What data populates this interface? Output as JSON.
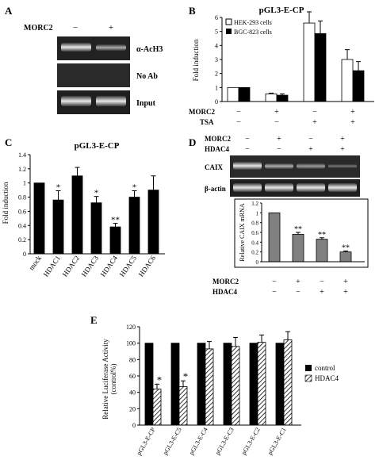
{
  "panelA": {
    "letter": "A",
    "label": "MORC2",
    "signs": [
      "−",
      "+"
    ],
    "rows": [
      "α-AcH3",
      "No Ab",
      "Input"
    ]
  },
  "panelB": {
    "letter": "B",
    "title": "pGL3-E-CP",
    "ylabel": "Fold induction",
    "yticks": [
      "0",
      "1",
      "2",
      "3",
      "4",
      "5",
      "6"
    ],
    "row_labels": [
      "MORC2",
      "TSA"
    ],
    "signs": [
      [
        "−",
        "+",
        "−",
        "+"
      ],
      [
        "−",
        "−",
        "+",
        "+"
      ]
    ],
    "legend": [
      "HEK-293 cells",
      "BGC-823 cells"
    ]
  },
  "panelC": {
    "letter": "C",
    "title": "pGL3-E-CP",
    "ylabel": "Fold induction",
    "yticks": [
      "0",
      "0.2",
      "0.4",
      "0.6",
      "0.8",
      "1",
      "1.2",
      "1.4"
    ],
    "categories": [
      "mock",
      "HDAC1",
      "HDAC2",
      "HDAC3",
      "HDAC4",
      "HDAC5",
      "HDAC6"
    ],
    "stars": [
      "",
      "*",
      "",
      "*",
      "**",
      "*",
      ""
    ]
  },
  "panelD": {
    "letter": "D",
    "top_labels": [
      "MORC2",
      "HDAC4"
    ],
    "top_signs": [
      [
        "−",
        "+",
        "−",
        "+"
      ],
      [
        "−",
        "−",
        "+",
        "+"
      ]
    ],
    "gel_rows": [
      "CAIX",
      "β-actin"
    ],
    "ylabel": "Relative CAIX mRNA",
    "yticks": [
      "0",
      "0.2",
      "0.4",
      "0.6",
      "0.8",
      "1",
      "1.2"
    ],
    "stars": [
      "",
      "**",
      "**",
      "**"
    ],
    "bottom_labels": [
      "MORC2",
      "HDAC4"
    ],
    "bottom_signs": [
      [
        "−",
        "+",
        "−",
        "+"
      ],
      [
        "−",
        "−",
        "+",
        "+"
      ]
    ]
  },
  "panelE": {
    "letter": "E",
    "ylabel": "Relative Luciferase Activity (control%)",
    "yticks": [
      "0",
      "20",
      "40",
      "60",
      "80",
      "100",
      "120"
    ],
    "categories": [
      "pGL3-E-CP",
      "pGL3-E-C5",
      "pGL3-E-C4",
      "pGL3-E-C3",
      "pGL3-E-C2",
      "pGL3-E-C1"
    ],
    "stars": [
      "*",
      "*",
      "",
      "",
      "",
      ""
    ],
    "legend": [
      "control",
      "HDAC4"
    ]
  },
  "chart_data": [
    {
      "panel": "B",
      "type": "bar",
      "title": "pGL3-E-CP",
      "ylabel": "Fold induction",
      "ylim": [
        0,
        6
      ],
      "categories": [
        "MORC2 −/TSA −",
        "MORC2 +/TSA −",
        "MORC2 −/TSA +",
        "MORC2 +/TSA +"
      ],
      "series": [
        {
          "name": "HEK-293 cells",
          "values": [
            1.0,
            0.55,
            5.6,
            3.0
          ],
          "errors": [
            0,
            0.05,
            0.8,
            0.7
          ],
          "color": "#ffffff"
        },
        {
          "name": "BGC-823 cells",
          "values": [
            1.0,
            0.45,
            4.85,
            2.2
          ],
          "errors": [
            0,
            0.1,
            0.9,
            0.65
          ],
          "color": "#000000"
        }
      ],
      "legend": "top-left"
    },
    {
      "panel": "C",
      "type": "bar",
      "title": "pGL3-E-CP",
      "ylabel": "Fold induction",
      "ylim": [
        0,
        1.4
      ],
      "categories": [
        "mock",
        "HDAC1",
        "HDAC2",
        "HDAC3",
        "HDAC4",
        "HDAC5",
        "HDAC6"
      ],
      "values": [
        1.0,
        0.76,
        1.1,
        0.72,
        0.38,
        0.8,
        0.9
      ],
      "errors": [
        0,
        0.13,
        0.12,
        0.09,
        0.05,
        0.09,
        0.2
      ],
      "color": "#000000"
    },
    {
      "panel": "D",
      "type": "bar",
      "ylabel": "Relative CAIX mRNA",
      "ylim": [
        0,
        1.2
      ],
      "categories": [
        "MORC2 −/HDAC4 −",
        "MORC2 +/HDAC4 −",
        "MORC2 −/HDAC4 +",
        "MORC2 +/HDAC4 +"
      ],
      "values": [
        1.0,
        0.56,
        0.46,
        0.2
      ],
      "errors": [
        0,
        0.04,
        0.03,
        0.02
      ],
      "color": "#808080"
    },
    {
      "panel": "E",
      "type": "bar",
      "ylabel": "Relative Luciferase Activity (control%)",
      "ylim": [
        0,
        120
      ],
      "categories": [
        "pGL3-E-CP",
        "pGL3-E-C5",
        "pGL3-E-C4",
        "pGL3-E-C3",
        "pGL3-E-C2",
        "pGL3-E-C1"
      ],
      "series": [
        {
          "name": "control",
          "values": [
            100,
            100,
            100,
            100,
            100,
            100
          ],
          "errors": [
            0,
            0,
            0,
            0,
            0,
            0
          ],
          "color": "#000000"
        },
        {
          "name": "HDAC4",
          "values": [
            44,
            47,
            93,
            96,
            101,
            104
          ],
          "errors": [
            6,
            7,
            9,
            11,
            9,
            10
          ],
          "color": "hatched"
        }
      ],
      "legend": "right"
    }
  ]
}
